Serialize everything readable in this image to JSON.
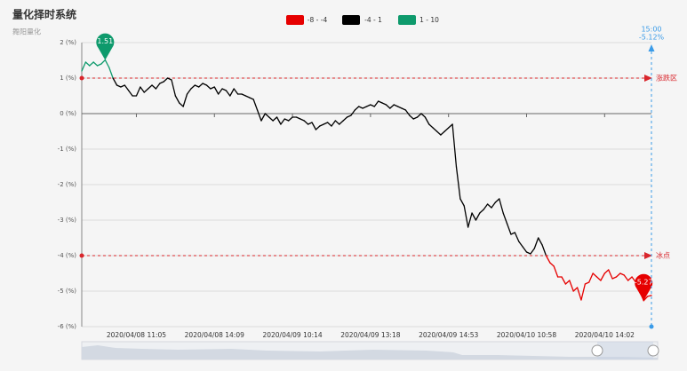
{
  "chart_data": {
    "type": "line",
    "title": "量化择时系统",
    "subtitle": "舞阳量化",
    "categories": [
      null,
      null,
      null,
      null,
      null,
      null,
      null,
      null,
      null,
      null,
      null,
      null,
      null,
      null,
      "2020/04/08 11:05",
      null,
      null,
      null,
      null,
      null,
      null,
      null,
      null,
      null,
      null,
      null,
      null,
      null,
      null,
      null,
      null,
      null,
      null,
      null,
      "2020/04/08 14:09",
      null,
      null,
      null,
      null,
      null,
      null,
      null,
      null,
      null,
      null,
      null,
      null,
      null,
      null,
      null,
      null,
      null,
      null,
      null,
      "2020/04/09 10:14",
      null,
      null,
      null,
      null,
      null,
      null,
      null,
      null,
      null,
      null,
      null,
      null,
      null,
      null,
      null,
      null,
      null,
      null,
      null,
      "2020/04/09 13:18",
      null,
      null,
      null,
      null,
      null,
      null,
      null,
      null,
      null,
      null,
      null,
      null,
      null,
      null,
      null,
      null,
      null,
      null,
      null,
      "2020/04/09 14:53",
      null,
      null,
      null,
      null,
      null,
      null,
      null,
      null,
      null,
      null,
      null,
      null,
      null,
      null,
      null,
      null,
      null,
      null,
      null,
      "2020/04/10 10:58",
      null,
      null,
      null,
      null,
      null,
      null,
      null,
      null,
      null,
      null,
      null,
      null,
      null,
      null,
      null,
      null,
      null,
      null,
      null,
      "2020/04/10 14:02",
      null,
      null,
      null,
      null,
      null,
      null,
      null,
      null,
      null,
      null,
      null,
      "15:00"
    ],
    "series": [
      {
        "values": [
          1.2,
          1.45,
          1.35,
          1.45,
          1.35,
          1.4,
          1.51,
          1.3,
          1.0,
          0.8,
          0.75,
          0.8,
          0.65,
          0.5,
          0.5,
          0.75,
          0.6,
          0.7,
          0.8,
          0.7,
          0.85,
          0.9,
          1.0,
          0.95,
          0.5,
          0.3,
          0.2,
          0.55,
          0.7,
          0.8,
          0.75,
          0.85,
          0.8,
          0.7,
          0.75,
          0.55,
          0.7,
          0.65,
          0.5,
          0.7,
          0.55,
          0.55,
          0.5,
          0.45,
          0.4,
          0.1,
          -0.2,
          0.0,
          -0.1,
          -0.2,
          -0.1,
          -0.3,
          -0.15,
          -0.2,
          -0.1,
          -0.1,
          -0.15,
          -0.2,
          -0.3,
          -0.25,
          -0.45,
          -0.35,
          -0.3,
          -0.25,
          -0.35,
          -0.2,
          -0.3,
          -0.2,
          -0.1,
          -0.05,
          0.1,
          0.2,
          0.15,
          0.2,
          0.25,
          0.2,
          0.35,
          0.3,
          0.25,
          0.15,
          0.25,
          0.2,
          0.15,
          0.1,
          -0.05,
          -0.15,
          -0.1,
          0.0,
          -0.1,
          -0.3,
          -0.4,
          -0.5,
          -0.6,
          -0.5,
          -0.4,
          -0.3,
          -1.5,
          -2.4,
          -2.6,
          -3.2,
          -2.8,
          -3.0,
          -2.8,
          -2.7,
          -2.55,
          -2.65,
          -2.5,
          -2.4,
          -2.8,
          -3.1,
          -3.4,
          -3.35,
          -3.6,
          -3.75,
          -3.9,
          -3.95,
          -3.8,
          -3.5,
          -3.7,
          -4.0,
          -4.2,
          -4.3,
          -4.6,
          -4.6,
          -4.8,
          -4.7,
          -5.0,
          -4.9,
          -5.25,
          -4.8,
          -4.75,
          -4.5,
          -4.6,
          -4.7,
          -4.5,
          -4.4,
          -4.65,
          -4.6,
          -4.5,
          -4.55,
          -4.7,
          -4.6,
          -4.75,
          -5.0,
          -5.27,
          -5.15,
          -5.12
        ],
        "value_labels": [
          null,
          null,
          null,
          null,
          null,
          null,
          null,
          null,
          null,
          null,
          null,
          null,
          null,
          null,
          null,
          null,
          null,
          null,
          null,
          null,
          null,
          null,
          null,
          null,
          null,
          null,
          null,
          null,
          null,
          null,
          null,
          null,
          null,
          null,
          null,
          null,
          null,
          null,
          null,
          null,
          null,
          null,
          null,
          null,
          null,
          null,
          null,
          null,
          null,
          null,
          null,
          null,
          null,
          null,
          null,
          null,
          null,
          null,
          null,
          null,
          null,
          null,
          null,
          null,
          null,
          null,
          null,
          null,
          null,
          null,
          null,
          null,
          null,
          null,
          null,
          null,
          null,
          null,
          null,
          null,
          null,
          null,
          null,
          null,
          null,
          null,
          null,
          null,
          null,
          null,
          null,
          null,
          null,
          null,
          null,
          null,
          null,
          null,
          null,
          null,
          null,
          null,
          null,
          null,
          null,
          null,
          null,
          null,
          null,
          null,
          null,
          null,
          null,
          null,
          null,
          null,
          null,
          null,
          null,
          null,
          null,
          null,
          null,
          null,
          null,
          null,
          null,
          null,
          null,
          null,
          null,
          null,
          null,
          null,
          null,
          null,
          null,
          null,
          null,
          null,
          null,
          null,
          null,
          null,
          null,
          null,
          "-5.12%"
        ]
      }
    ],
    "pieces": [
      {
        "min": -8,
        "max": -4,
        "color": "#e60000",
        "label": "-8 - -4"
      },
      {
        "min": -4,
        "max": 1,
        "color": "#000000",
        "label": "-4 - 1"
      },
      {
        "min": 1,
        "max": 10,
        "color": "#0e9a6c",
        "label": "1 - 10"
      }
    ],
    "mark_lines": [
      {
        "value": 1,
        "label": "涨跌区"
      },
      {
        "value": -4,
        "label": "冰点"
      }
    ],
    "ylim": [
      -6,
      2
    ],
    "yticks": [
      {
        "value": 2,
        "label": "2 (%)"
      },
      {
        "value": 1,
        "label": "1 (%)"
      },
      {
        "value": 0,
        "label": "0 (%)"
      },
      {
        "value": -1,
        "label": "-1 (%)"
      },
      {
        "value": -2,
        "label": "-2 (%)"
      },
      {
        "value": -3,
        "label": "-3 (%)"
      },
      {
        "value": -4,
        "label": "-4 (%)"
      },
      {
        "value": -5,
        "label": "-5 (%)"
      },
      {
        "value": -6,
        "label": "-6 (%)"
      }
    ],
    "grid": true
  }
}
